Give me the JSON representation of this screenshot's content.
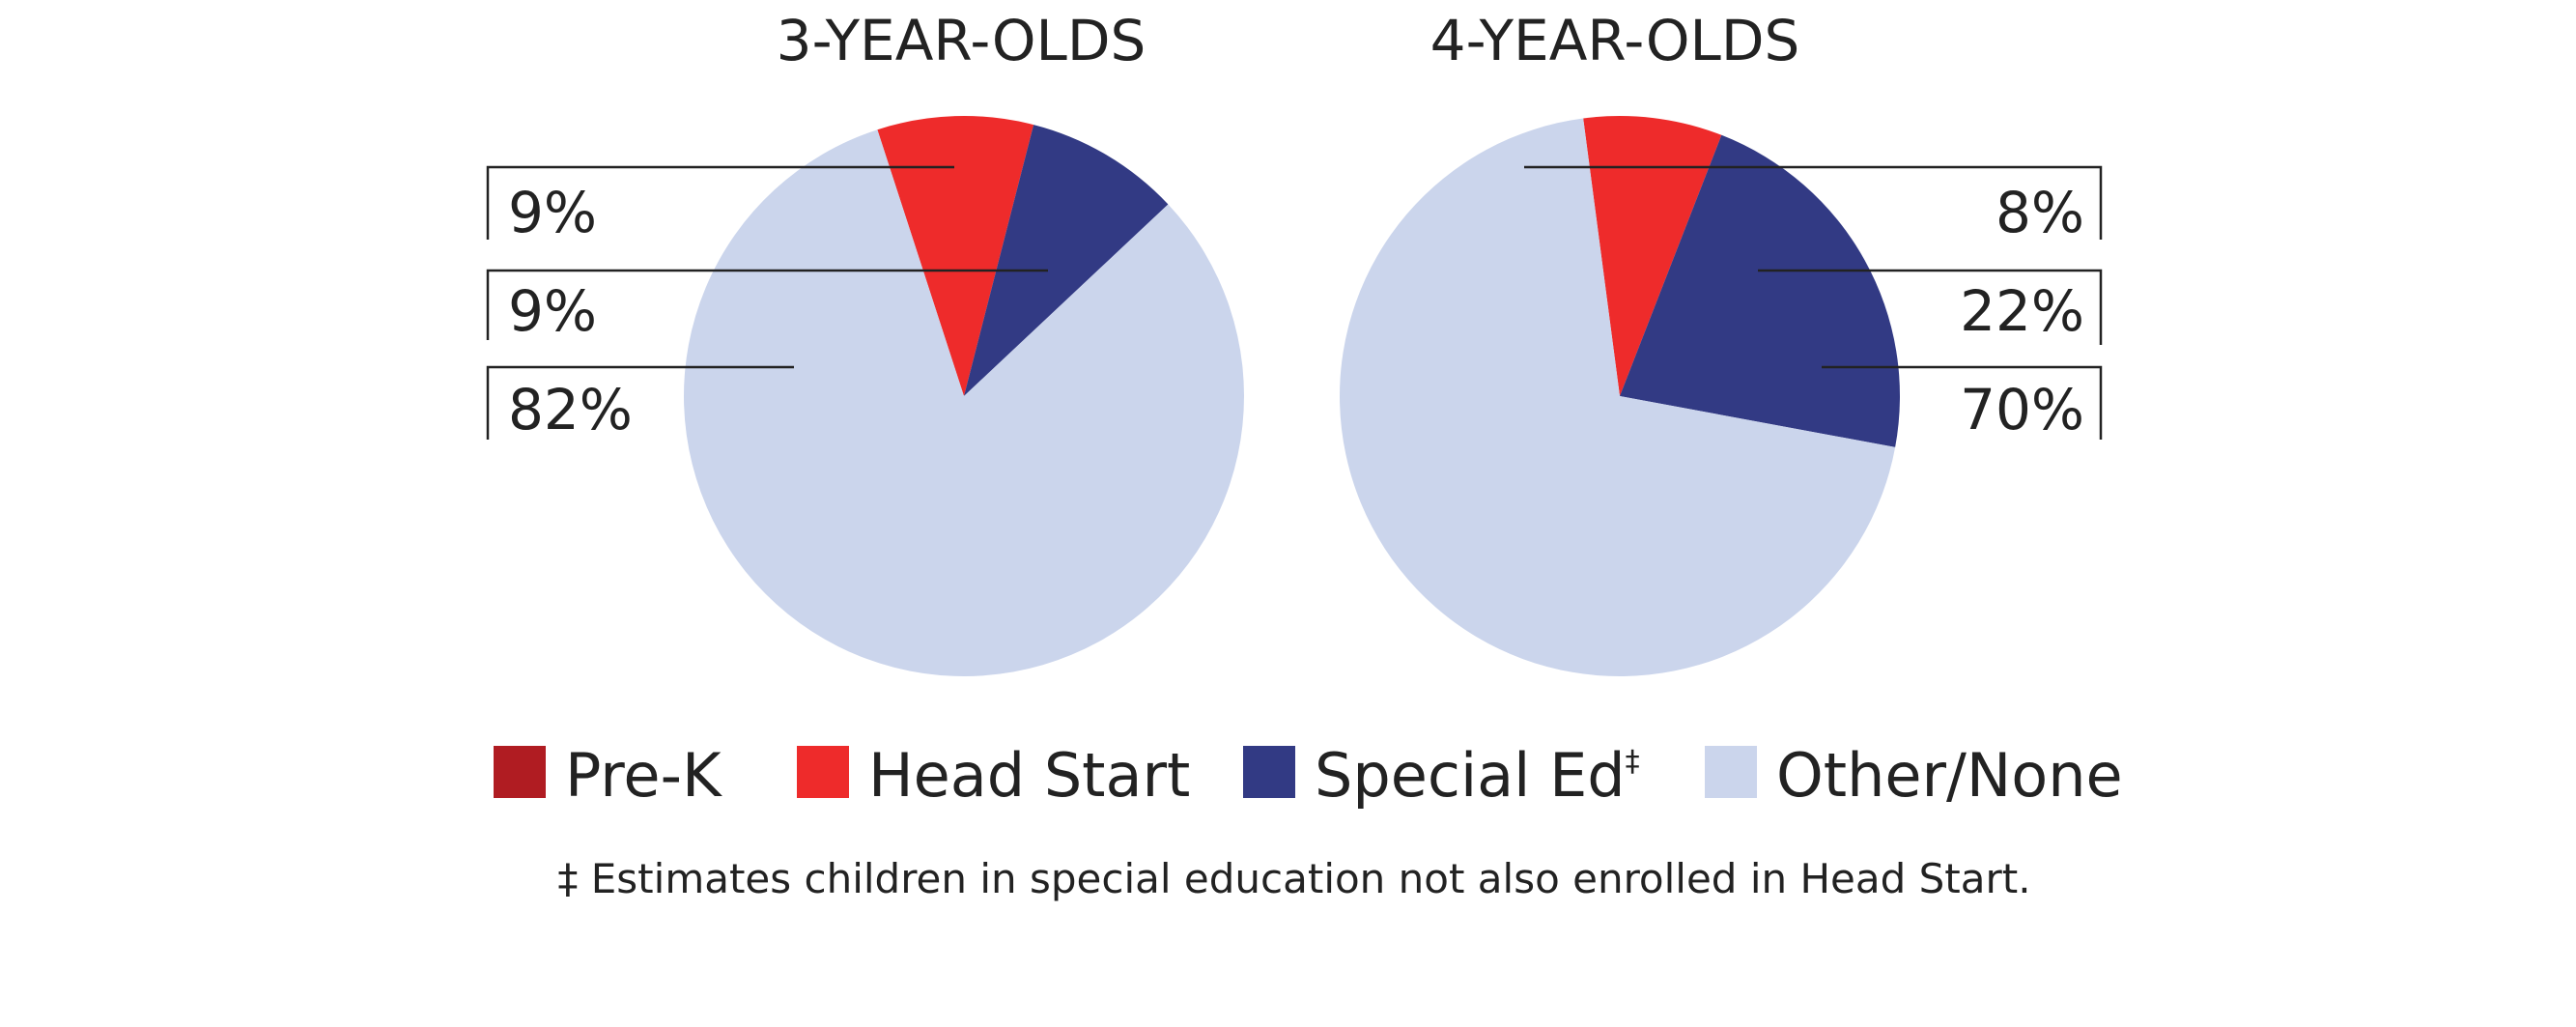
{
  "chart_data": [
    {
      "type": "pie",
      "title": "3-YEAR-OLDS",
      "slices": [
        {
          "name": "Head Start",
          "value": 9,
          "label": "9%"
        },
        {
          "name": "Special Ed",
          "value": 9,
          "label": "9%"
        },
        {
          "name": "Other/None",
          "value": 82,
          "label": "82%"
        }
      ]
    },
    {
      "type": "pie",
      "title": "4-YEAR-OLDS",
      "slices": [
        {
          "name": "Head Start",
          "value": 8,
          "label": "8%"
        },
        {
          "name": "Special Ed",
          "value": 22,
          "label": "22%"
        },
        {
          "name": "Other/None",
          "value": 70,
          "label": "70%"
        }
      ]
    }
  ],
  "legend": {
    "placement": "bottom",
    "items": [
      {
        "label": "Pre-K",
        "color": "#b01c22"
      },
      {
        "label": "Head Start",
        "color": "#ee2b2b"
      },
      {
        "label": "Special Ed",
        "sup": "‡",
        "color": "#323a84"
      },
      {
        "label": "Other/None",
        "color": "#cbd5ec"
      }
    ]
  },
  "colors": {
    "Head Start": "#ee2b2b",
    "Special Ed": "#323a84",
    "Other/None": "#cbd5ec"
  },
  "footnote": "‡ Estimates children in special education not also enrolled in Head Start."
}
